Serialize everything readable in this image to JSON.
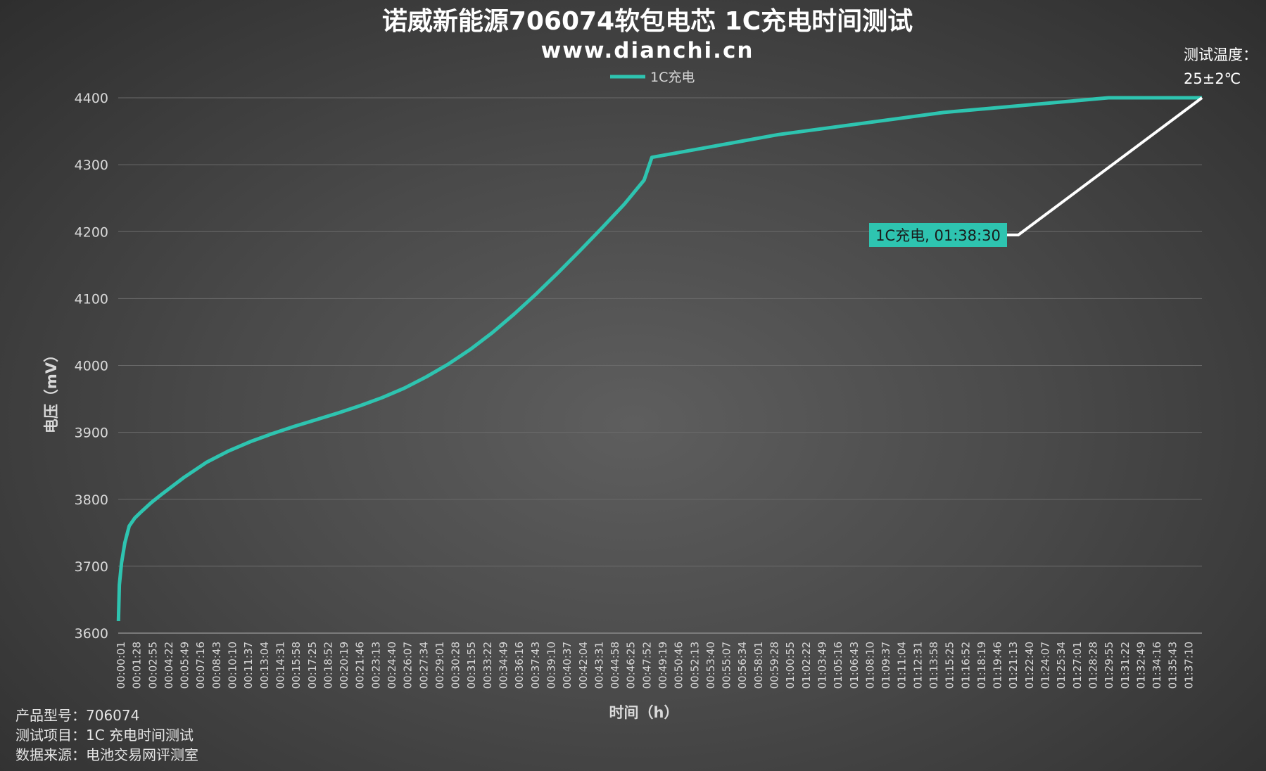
{
  "chart_data": {
    "type": "line",
    "title": "诺威新能源706074软包电芯 1C充电时间测试",
    "subtitle": "www.dianchi.cn",
    "xlabel": "时间（h）",
    "ylabel": "电压（mV）",
    "ylim": [
      3600,
      4400
    ],
    "yticks": [
      3600,
      3700,
      3800,
      3900,
      4000,
      4100,
      4200,
      4300,
      4400
    ],
    "grid": true,
    "legend": "top-center",
    "line_color": "#2ec4b0",
    "x_tick_labels": [
      "00:00:01",
      "00:01:28",
      "00:02:55",
      "00:04:22",
      "00:05:49",
      "00:07:16",
      "00:08:43",
      "00:10:10",
      "00:11:37",
      "00:13:04",
      "00:14:31",
      "00:15:58",
      "00:17:25",
      "00:18:52",
      "00:20:19",
      "00:21:46",
      "00:23:13",
      "00:24:40",
      "00:26:07",
      "00:27:34",
      "00:29:01",
      "00:30:28",
      "00:31:55",
      "00:33:22",
      "00:34:49",
      "00:36:16",
      "00:37:43",
      "00:39:10",
      "00:40:37",
      "00:42:04",
      "00:43:31",
      "00:44:58",
      "00:46:25",
      "00:47:52",
      "00:49:19",
      "00:50:46",
      "00:52:13",
      "00:53:40",
      "00:55:07",
      "00:56:34",
      "00:58:01",
      "00:59:28",
      "01:00:55",
      "01:02:22",
      "01:03:49",
      "01:05:16",
      "01:06:43",
      "01:08:10",
      "01:09:37",
      "01:11:04",
      "01:12:31",
      "01:13:58",
      "01:15:25",
      "01:16:52",
      "01:18:19",
      "01:19:46",
      "01:21:13",
      "01:22:40",
      "01:24:07",
      "01:25:34",
      "01:27:01",
      "01:28:28",
      "01:29:55",
      "01:31:22",
      "01:32:49",
      "01:34:16",
      "01:35:43",
      "01:37:10"
    ],
    "series": [
      {
        "name": "1C充电",
        "x_min": [
          0.02,
          0.1,
          0.3,
          0.6,
          1.0,
          1.5,
          2.0,
          3.0,
          4.0,
          6.0,
          8.0,
          10.0,
          12.0,
          14.0,
          16.0,
          18.0,
          20.0,
          22.0,
          24.0,
          26.0,
          28.0,
          30.0,
          32.0,
          34.0,
          36.0,
          38.0,
          40.0,
          42.0,
          44.0,
          46.0,
          47.8,
          48.5,
          60.0,
          75.0,
          90.0,
          98.5
        ],
        "y_mV": [
          3618,
          3672,
          3705,
          3735,
          3760,
          3772,
          3780,
          3795,
          3808,
          3833,
          3855,
          3872,
          3886,
          3898,
          3909,
          3919,
          3929,
          3940,
          3952,
          3966,
          3983,
          4002,
          4024,
          4049,
          4077,
          4107,
          4139,
          4172,
          4206,
          4241,
          4277,
          4311,
          4345,
          4378,
          4400,
          4400
        ]
      }
    ],
    "annotation": {
      "label": "1C充电, 01:38:30",
      "x_min": 98.5,
      "y_mV": 4400
    }
  },
  "notes": {
    "temperature_line1": "测试温度：",
    "temperature_line2": "25±2℃",
    "model": "产品型号：706074",
    "test_item": "测试项目：1C 充电时间测试",
    "source": "数据来源：电池交易网评测室"
  }
}
